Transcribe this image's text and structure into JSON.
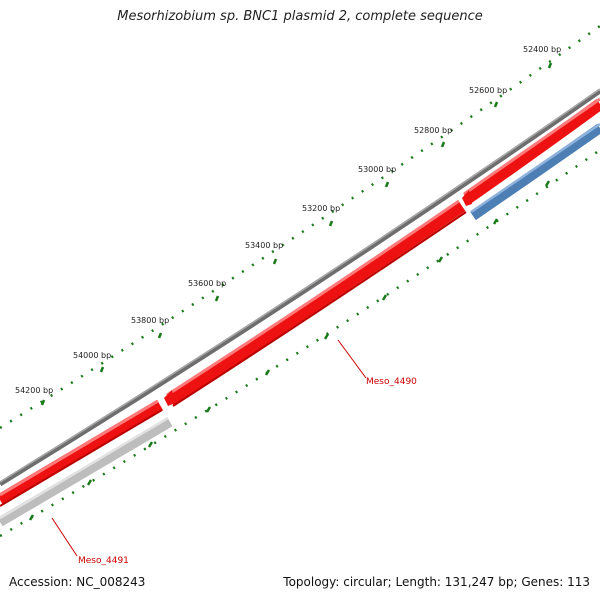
{
  "title": "Mesorhizobium sp. BNC1 plasmid 2, complete sequence",
  "accession_line": "Accession: NC_008243",
  "summary_line": "Topology: circular; Length: 131,247 bp; Genes: 113",
  "ruler": {
    "tick_labels": [
      "52400 bp",
      "52600 bp",
      "52800 bp",
      "53000 bp",
      "53200 bp",
      "53400 bp",
      "53600 bp",
      "53800 bp",
      "54000 bp",
      "54200 bp"
    ]
  },
  "genes": [
    {
      "label": "Meso_4490",
      "strand": "forward",
      "color": "#ee0000",
      "label_color": "#cc0000"
    },
    {
      "label": "Meso_4491",
      "strand": "forward",
      "color": "#ee0000",
      "label_color": "#cc0000"
    }
  ],
  "colors": {
    "backbone": "#777777",
    "forward_feature": "#ee0000",
    "reverse_feature": "#4d7fb5",
    "reverse_feature_gray": "#bbbbbb",
    "tick": "#1a7a1a",
    "label": "#cc0000"
  }
}
